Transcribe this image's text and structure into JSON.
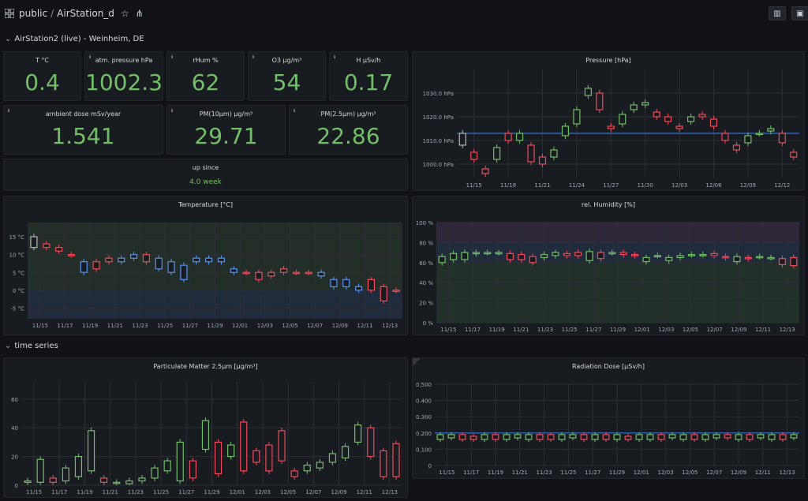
{
  "header": {
    "breadcrumb_root": "public",
    "breadcrumb_sep": "/",
    "dashboard_title": "AirStation_d",
    "icons": [
      "grid-icon",
      "star-icon",
      "share-icon",
      "add-panel-icon",
      "save-icon"
    ]
  },
  "rows": {
    "row1": "AirStation2 (live) - Weinheim, DE",
    "row2": "time series"
  },
  "stats": {
    "temp": {
      "title": "T °C",
      "value": "0.4"
    },
    "pressure": {
      "title": "atm. pressure hPa",
      "value": "1002.3"
    },
    "rhum": {
      "title": "rHum %",
      "value": "62"
    },
    "o3": {
      "title": "O3 µg/m³",
      "value": "54"
    },
    "h": {
      "title": "H µSv/h",
      "value": "0.17"
    },
    "dose": {
      "title": "ambient dose mSv/year",
      "value": "1.541"
    },
    "pm10": {
      "title": "PM(10µm) µg/m³",
      "value": "29.71"
    },
    "pm25": {
      "title": "PM(2.5µm) µg/m³",
      "value": "22.86"
    },
    "uptime": {
      "title": "up since",
      "value": "4.0 week"
    }
  },
  "colors": {
    "up": "#73bf69",
    "down": "#f2495c",
    "stat": "#73bf69",
    "blue": "#5794f2",
    "threshold": "#3274d9"
  },
  "chart_data": [
    {
      "type": "candlestick",
      "title": "Pressure [hPa]",
      "x_ticks": [
        "11/15",
        "11/18",
        "11/21",
        "11/24",
        "11/27",
        "11/30",
        "12/03",
        "12/06",
        "12/09",
        "12/12"
      ],
      "y_ticks": [
        "1000.0 hPa",
        "1010.0 hPa",
        "1020.0 hPa",
        "1030.0 hPa"
      ],
      "ylim": [
        994,
        1040
      ],
      "threshold": 1013,
      "candles": [
        [
          1013,
          1008
        ],
        [
          1005,
          1002
        ],
        [
          998,
          996
        ],
        [
          1002,
          1007
        ],
        [
          1013,
          1010
        ],
        [
          1010,
          1013
        ],
        [
          1008,
          1001
        ],
        [
          1003,
          1000
        ],
        [
          1003,
          1006
        ],
        [
          1012,
          1016
        ],
        [
          1017,
          1023
        ],
        [
          1029,
          1032
        ],
        [
          1030,
          1023
        ],
        [
          1016,
          1015
        ],
        [
          1017,
          1021
        ],
        [
          1023,
          1025
        ],
        [
          1025,
          1026
        ],
        [
          1022,
          1020
        ],
        [
          1020,
          1018
        ],
        [
          1016,
          1015
        ],
        [
          1018,
          1020
        ],
        [
          1021,
          1020
        ],
        [
          1019,
          1016
        ],
        [
          1013,
          1010
        ],
        [
          1008,
          1006
        ],
        [
          1009,
          1012
        ],
        [
          1013,
          1013
        ],
        [
          1014,
          1015
        ],
        [
          1013,
          1009
        ],
        [
          1005,
          1003
        ]
      ]
    },
    {
      "type": "candlestick",
      "title": "Temperature [°C]",
      "x_ticks": [
        "11/15",
        "11/17",
        "11/19",
        "11/21",
        "11/23",
        "11/25",
        "11/27",
        "11/29",
        "12/01",
        "12/03",
        "12/05",
        "12/07",
        "12/09",
        "12/11",
        "12/13"
      ],
      "y_ticks": [
        "-5 °C",
        "0 °C",
        "5 °C",
        "10 °C",
        "15 °C"
      ],
      "ylim": [
        -8,
        19
      ],
      "candles": [
        [
          12,
          15
        ],
        [
          12,
          13
        ],
        [
          11,
          12
        ],
        [
          10,
          10
        ],
        [
          8,
          5
        ],
        [
          6,
          8
        ],
        [
          8,
          9
        ],
        [
          9,
          8
        ],
        [
          10,
          9
        ],
        [
          8,
          10
        ],
        [
          9,
          6
        ],
        [
          8,
          5
        ],
        [
          7,
          3
        ],
        [
          9,
          8
        ],
        [
          9,
          8
        ],
        [
          9,
          8
        ],
        [
          6,
          5
        ],
        [
          5,
          5
        ],
        [
          3,
          5
        ],
        [
          4,
          5
        ],
        [
          5,
          6
        ],
        [
          5,
          5
        ],
        [
          5,
          5
        ],
        [
          5,
          4
        ],
        [
          3,
          1
        ],
        [
          3,
          1
        ],
        [
          1,
          0
        ],
        [
          0,
          3
        ],
        [
          -3,
          1
        ],
        [
          0,
          0
        ]
      ],
      "colors_by_candle": "mixed"
    },
    {
      "type": "candlestick",
      "title": "rel. Humidity [%]",
      "x_ticks": [
        "11/15",
        "11/17",
        "11/19",
        "11/21",
        "11/23",
        "11/25",
        "11/27",
        "11/29",
        "12/01",
        "12/03",
        "12/05",
        "12/07",
        "12/09",
        "12/11",
        "12/13"
      ],
      "y_ticks": [
        "0 %",
        "20 %",
        "40 %",
        "60 %",
        "80 %",
        "100 %"
      ],
      "ylim": [
        0,
        100
      ],
      "candles": [
        [
          60,
          66
        ],
        [
          63,
          69
        ],
        [
          63,
          70
        ],
        [
          69,
          70
        ],
        [
          70,
          70
        ],
        [
          70,
          70
        ],
        [
          69,
          63
        ],
        [
          68,
          63
        ],
        [
          66,
          60
        ],
        [
          65,
          68
        ],
        [
          67,
          70
        ],
        [
          69,
          67
        ],
        [
          70,
          67
        ],
        [
          62,
          71
        ],
        [
          70,
          64
        ],
        [
          70,
          70
        ],
        [
          70,
          68
        ],
        [
          68,
          67
        ],
        [
          61,
          65
        ],
        [
          67,
          67
        ],
        [
          62,
          65
        ],
        [
          65,
          67
        ],
        [
          68,
          68
        ],
        [
          68,
          68
        ],
        [
          69,
          67
        ],
        [
          66,
          65
        ],
        [
          61,
          66
        ],
        [
          65,
          64
        ],
        [
          66,
          66
        ],
        [
          65,
          65
        ],
        [
          64,
          58
        ],
        [
          65,
          57
        ]
      ]
    },
    {
      "type": "candlestick",
      "title": "Particulate Matter 2.5µm [µg/m³]",
      "x_ticks": [
        "11/15",
        "11/17",
        "11/19",
        "11/21",
        "11/23",
        "11/25",
        "11/27",
        "11/29",
        "12/01",
        "12/03",
        "12/05",
        "12/07",
        "12/09",
        "12/11",
        "12/13"
      ],
      "y_ticks": [
        "0",
        "20",
        "40",
        "60"
      ],
      "ylim": [
        0,
        72
      ],
      "candles": [
        [
          2,
          3
        ],
        [
          2,
          18
        ],
        [
          5,
          2
        ],
        [
          3,
          12
        ],
        [
          6,
          20
        ],
        [
          10,
          38
        ],
        [
          5,
          2
        ],
        [
          2,
          2
        ],
        [
          1,
          3
        ],
        [
          3,
          5
        ],
        [
          5,
          12
        ],
        [
          10,
          17
        ],
        [
          3,
          30
        ],
        [
          17,
          5
        ],
        [
          25,
          45
        ],
        [
          30,
          8
        ],
        [
          20,
          28
        ],
        [
          44,
          10
        ],
        [
          24,
          16
        ],
        [
          28,
          10
        ],
        [
          38,
          17
        ],
        [
          10,
          6
        ],
        [
          10,
          14
        ],
        [
          12,
          16
        ],
        [
          16,
          22
        ],
        [
          19,
          27
        ],
        [
          30,
          42
        ],
        [
          40,
          20
        ],
        [
          24,
          6
        ],
        [
          29,
          6
        ]
      ]
    },
    {
      "type": "candlestick",
      "title": "Radiation Dose [µSv/h]",
      "x_ticks": [
        "11/15",
        "11/17",
        "11/19",
        "11/21",
        "11/23",
        "11/25",
        "11/27",
        "11/29",
        "12/01",
        "12/03",
        "12/05",
        "12/07",
        "12/09",
        "12/11",
        "12/13"
      ],
      "y_ticks": [
        "0",
        "0.100",
        "0.200",
        "0.300",
        "0.400",
        "0.500"
      ],
      "ylim": [
        0,
        0.5
      ],
      "threshold": 0.2,
      "candles": [
        [
          0.16,
          0.19
        ],
        [
          0.17,
          0.19
        ],
        [
          0.19,
          0.16
        ],
        [
          0.18,
          0.16
        ],
        [
          0.16,
          0.19
        ],
        [
          0.19,
          0.16
        ],
        [
          0.16,
          0.19
        ],
        [
          0.17,
          0.19
        ],
        [
          0.16,
          0.19
        ],
        [
          0.19,
          0.16
        ],
        [
          0.19,
          0.16
        ],
        [
          0.16,
          0.19
        ],
        [
          0.17,
          0.19
        ],
        [
          0.19,
          0.16
        ],
        [
          0.16,
          0.19
        ],
        [
          0.19,
          0.16
        ],
        [
          0.16,
          0.19
        ],
        [
          0.18,
          0.16
        ],
        [
          0.16,
          0.19
        ],
        [
          0.16,
          0.19
        ],
        [
          0.19,
          0.16
        ],
        [
          0.17,
          0.19
        ],
        [
          0.16,
          0.19
        ],
        [
          0.19,
          0.16
        ],
        [
          0.16,
          0.19
        ],
        [
          0.17,
          0.19
        ],
        [
          0.19,
          0.17
        ],
        [
          0.16,
          0.19
        ],
        [
          0.19,
          0.16
        ],
        [
          0.17,
          0.19
        ],
        [
          0.16,
          0.19
        ],
        [
          0.19,
          0.16
        ],
        [
          0.17,
          0.19
        ]
      ]
    }
  ]
}
